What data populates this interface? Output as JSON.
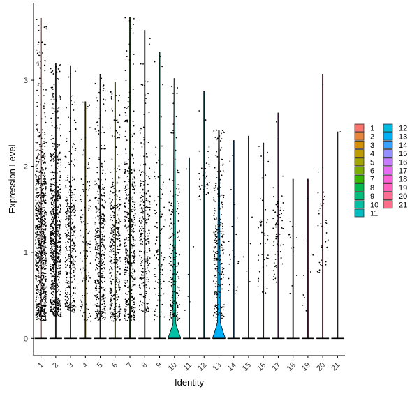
{
  "chart_data": {
    "type": "violin",
    "xlabel": "Identity",
    "ylabel": "Expression Level",
    "ylim": [
      -0.2,
      3.9
    ],
    "yticks": [
      0,
      1,
      2,
      3
    ],
    "categories": [
      "1",
      "2",
      "3",
      "4",
      "5",
      "6",
      "7",
      "8",
      "9",
      "10",
      "11",
      "12",
      "13",
      "14",
      "15",
      "16",
      "17",
      "18",
      "19",
      "20",
      "21"
    ],
    "colors": [
      "#F8766D",
      "#E8853A",
      "#D89000",
      "#BE9C00",
      "#A3A500",
      "#7CAE00",
      "#39B600",
      "#00BB4E",
      "#00BF7D",
      "#00C1A3",
      "#00BFC4",
      "#00BAE0",
      "#00B0F6",
      "#35A2FF",
      "#9590FF",
      "#C77CFF",
      "#E76BF3",
      "#FA62DB",
      "#FF62BC",
      "#FF6C91",
      "#FF6C8A"
    ],
    "max_expression": [
      3.72,
      3.2,
      3.17,
      2.75,
      3.07,
      2.98,
      3.73,
      3.58,
      3.33,
      3.02,
      2.1,
      2.87,
      2.42,
      2.3,
      2.35,
      2.27,
      2.62,
      1.85,
      1.85,
      3.07,
      2.4
    ],
    "point_bands": [
      [
        0.2,
        2.6
      ],
      [
        0.25,
        2.45
      ],
      [
        0.3,
        2.5
      ],
      [
        0.2,
        2.4
      ],
      [
        0.2,
        2.3
      ],
      [
        0.2,
        2.3
      ],
      [
        0.2,
        2.5
      ],
      [
        0.3,
        2.6
      ],
      [
        0.2,
        2.4
      ],
      [
        0.2,
        2.3
      ],
      [
        0.3,
        1.7
      ],
      [
        1.6,
        2.3
      ],
      [
        0.2,
        2.3
      ],
      [
        0.5,
        2.2
      ],
      [
        0.6,
        1.9
      ],
      [
        0.5,
        2.1
      ],
      [
        0.6,
        2.1
      ],
      [
        0.5,
        1.7
      ],
      [
        0.3,
        1.6
      ],
      [
        0.7,
        2.2
      ],
      [
        2.4,
        2.4
      ]
    ],
    "point_counts": [
      900,
      700,
      360,
      130,
      420,
      380,
      450,
      280,
      110,
      180,
      6,
      40,
      240,
      22,
      5,
      45,
      70,
      12,
      10,
      35,
      1
    ],
    "violin_zero_mass": [
      0,
      0,
      0,
      0,
      0,
      0,
      0,
      0,
      0,
      0.22,
      0,
      0,
      0.24,
      0,
      0,
      0,
      0,
      0,
      0,
      0,
      0
    ],
    "legend": {
      "position": "right",
      "columns": [
        [
          "1",
          "2",
          "3",
          "4",
          "5",
          "6",
          "7",
          "8",
          "9",
          "10",
          "11"
        ],
        [
          "12",
          "13",
          "14",
          "15",
          "16",
          "17",
          "18",
          "19",
          "20",
          "21"
        ]
      ]
    }
  }
}
